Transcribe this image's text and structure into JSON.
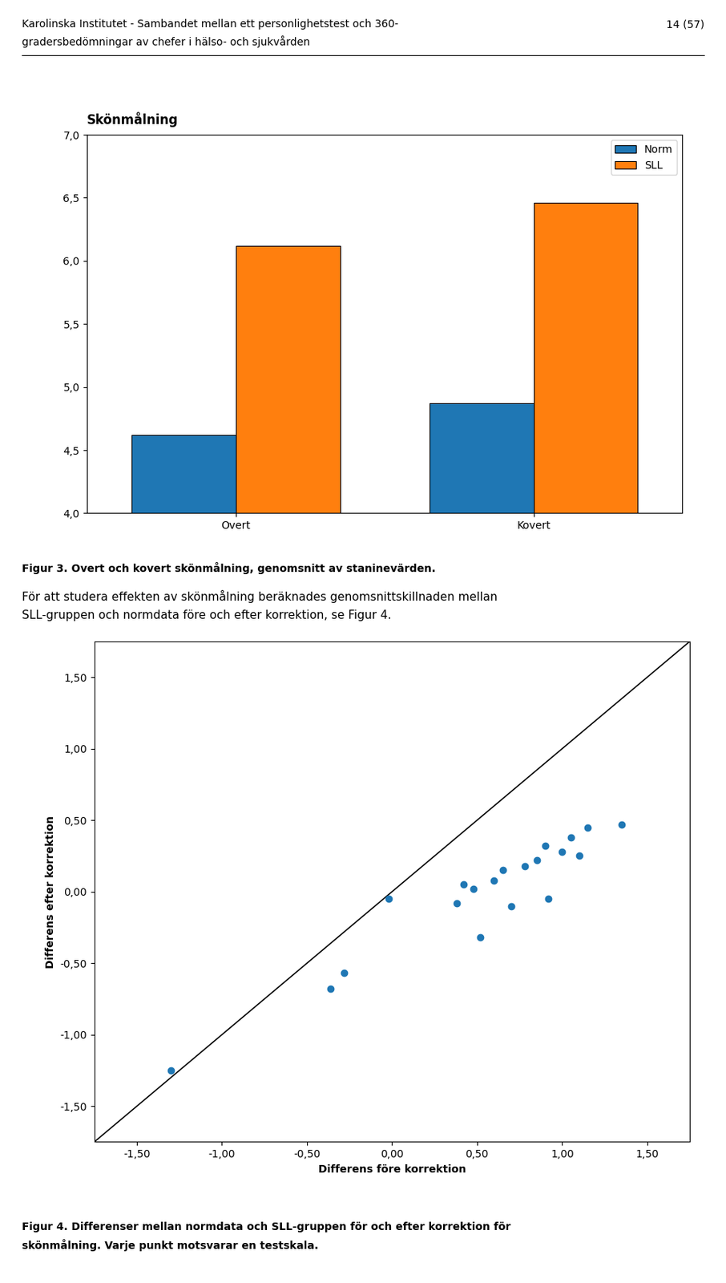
{
  "chart_data": [
    {
      "type": "bar",
      "title": "Skönmålning",
      "categories": [
        "Overt",
        "Kovert"
      ],
      "series": [
        {
          "name": "Norm",
          "values": [
            4.62,
            4.87
          ]
        },
        {
          "name": "SLL",
          "values": [
            6.12,
            6.46
          ]
        }
      ],
      "ylim": [
        4.0,
        7.0
      ],
      "yticks": [
        {
          "value": 4.0,
          "label": "4,0"
        },
        {
          "value": 4.5,
          "label": "4,5"
        },
        {
          "value": 5.0,
          "label": "5,0"
        },
        {
          "value": 5.5,
          "label": "5,5"
        },
        {
          "value": 6.0,
          "label": "6,0"
        },
        {
          "value": 6.5,
          "label": "6,5"
        },
        {
          "value": 7.0,
          "label": "7,0"
        }
      ],
      "grid": false,
      "legend": "upper right",
      "annotations": [
        "Karolinska Institutet - Sambandet mellan ett personlighetstest och 360-",
        "gradersbedömningar av chefer i hälso- och sjukvården",
        "14 (57)",
        "Figur 3. Overt och kovert skönmålning, genomsnitt av staninevärden.",
        "För att studera effekten av skönmålning beräknades genomsnittskillnaden mellan",
        "SLL-gruppen och normdata före och efter korrektion, se Figur 4."
      ]
    },
    {
      "type": "scatter",
      "x_label": "Differens före korrektion",
      "y_label": "Differens efter korrektion",
      "x": [
        -1.3,
        -0.28,
        -0.36,
        -0.02,
        0.38,
        0.42,
        0.48,
        0.52,
        0.6,
        0.65,
        0.7,
        0.78,
        0.85,
        0.9,
        0.92,
        1.0,
        1.05,
        1.1,
        1.15,
        1.35
      ],
      "values": [
        -1.25,
        -0.57,
        -0.68,
        -0.05,
        -0.08,
        0.05,
        0.02,
        -0.32,
        0.08,
        0.15,
        -0.1,
        0.18,
        0.22,
        0.32,
        -0.05,
        0.28,
        0.38,
        0.25,
        0.45,
        0.47
      ],
      "xlim": [
        -1.75,
        1.75
      ],
      "ylim": [
        -1.75,
        1.75
      ],
      "xticks": [
        {
          "value": -1.5,
          "label": "-1,50"
        },
        {
          "value": -1.0,
          "label": "-1,00"
        },
        {
          "value": -0.5,
          "label": "-0,50"
        },
        {
          "value": 0.0,
          "label": "0,00"
        },
        {
          "value": 0.5,
          "label": "0,50"
        },
        {
          "value": 1.0,
          "label": "1,00"
        },
        {
          "value": 1.5,
          "label": "1,50"
        }
      ],
      "yticks": [
        {
          "value": -1.5,
          "label": "-1,50"
        },
        {
          "value": -1.0,
          "label": "-1,00"
        },
        {
          "value": -0.5,
          "label": "-0,50"
        },
        {
          "value": 0.0,
          "label": "0,00"
        },
        {
          "value": 0.5,
          "label": "0,50"
        },
        {
          "value": 1.0,
          "label": "1,00"
        },
        {
          "value": 1.5,
          "label": "1,50"
        }
      ],
      "grid": false,
      "annotations": [
        "Figur 4. Differenser mellan normdata och SLL-gruppen för och efter korrektion för",
        "skönmålning. Varje punkt motsvarar en testskala."
      ]
    }
  ]
}
